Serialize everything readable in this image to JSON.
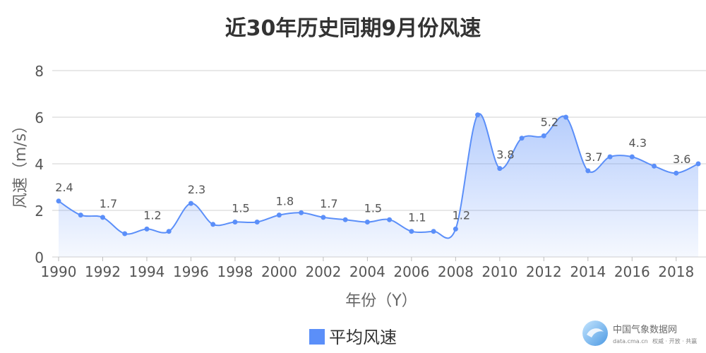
{
  "chart_data": {
    "type": "area",
    "title": "近30年历史同期9月份风速",
    "xlabel": "年份（Y）",
    "ylabel": "风速（m/s）",
    "ylim": [
      0,
      8
    ],
    "yticks": [
      0,
      2,
      4,
      6,
      8
    ],
    "xticks": [
      1990,
      1992,
      1994,
      1996,
      1998,
      2000,
      2002,
      2004,
      2006,
      2008,
      2010,
      2012,
      2014,
      2016,
      2018
    ],
    "grid": true,
    "legend_position": "bottom",
    "x": [
      1990,
      1991,
      1992,
      1993,
      1994,
      1995,
      1996,
      1997,
      1998,
      1999,
      2000,
      2001,
      2002,
      2003,
      2004,
      2005,
      2006,
      2007,
      2008,
      2009,
      2010,
      2011,
      2012,
      2013,
      2014,
      2015,
      2016,
      2017,
      2018,
      2019
    ],
    "series": [
      {
        "name": "平均风速",
        "color": "#5b8ff9",
        "values": [
          2.4,
          1.8,
          1.7,
          1.0,
          1.2,
          1.1,
          2.3,
          1.4,
          1.5,
          1.5,
          1.8,
          1.9,
          1.7,
          1.6,
          1.5,
          1.6,
          1.1,
          1.1,
          1.2,
          6.1,
          3.8,
          5.1,
          5.2,
          6.0,
          3.7,
          4.3,
          4.3,
          3.9,
          3.6,
          4.0
        ]
      }
    ],
    "data_labels": [
      {
        "x": 1990,
        "text": "2.4"
      },
      {
        "x": 1992,
        "text": "1.7"
      },
      {
        "x": 1994,
        "text": "1.2"
      },
      {
        "x": 1996,
        "text": "2.3"
      },
      {
        "x": 1998,
        "text": "1.5"
      },
      {
        "x": 2000,
        "text": "1.8"
      },
      {
        "x": 2002,
        "text": "1.7"
      },
      {
        "x": 2004,
        "text": "1.5"
      },
      {
        "x": 2006,
        "text": "1.1"
      },
      {
        "x": 2008,
        "text": "1.2"
      },
      {
        "x": 2010,
        "text": "3.8"
      },
      {
        "x": 2012,
        "text": "5.2"
      },
      {
        "x": 2014,
        "text": "3.7"
      },
      {
        "x": 2016,
        "text": "4.3"
      },
      {
        "x": 2018,
        "text": "3.6"
      }
    ]
  },
  "watermark": {
    "name": "中国气象数据网",
    "url": "data.cma.cn",
    "slogan": "权威 · 开放 · 共赢"
  }
}
